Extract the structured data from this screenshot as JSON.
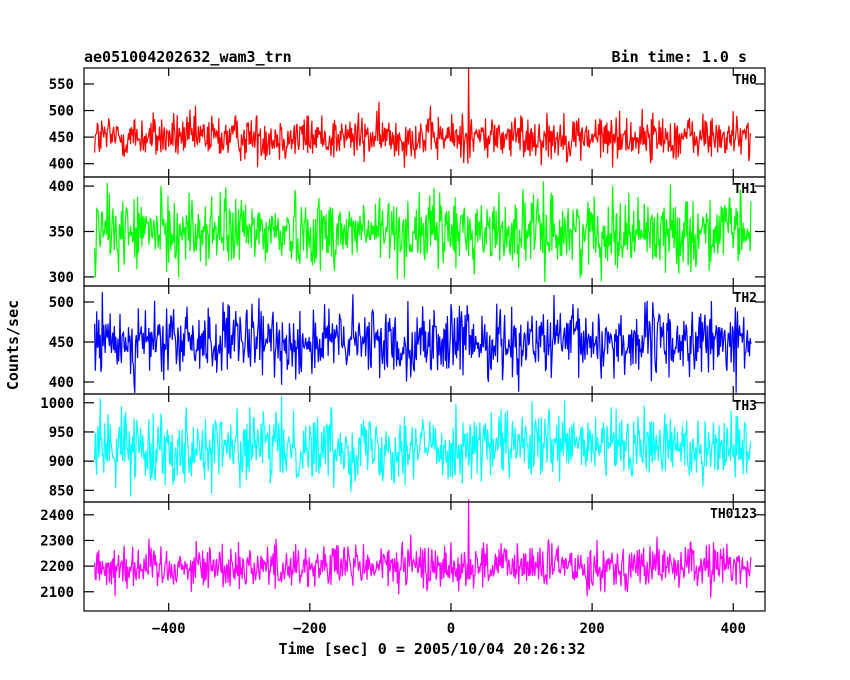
{
  "header": {
    "title": "ae051004202632_wam3_trn",
    "bin_time": "Bin time: 1.0 s"
  },
  "chart_data": {
    "type": "line",
    "xlabel": "Time [sec] 0 = 2005/10/04 20:26:32",
    "ylabel": "Counts/sec",
    "xlim": [
      -520,
      445
    ],
    "x_ticks": [
      -400,
      -200,
      0,
      200,
      400
    ],
    "x_tick_labels": [
      "−400",
      "−200",
      "0",
      "200",
      "400"
    ],
    "x_data_range": [
      -505,
      425
    ],
    "bin_time_s": 1.0,
    "shared_x_axis": true,
    "panels": [
      {
        "name": "TH0",
        "color": "#ff0000",
        "ylim": [
          375,
          580
        ],
        "yticks": [
          400,
          450,
          500,
          550
        ],
        "mean": 450,
        "spread": 22,
        "min": 372,
        "max": 580
      },
      {
        "name": "TH1",
        "color": "#00ff00",
        "ylim": [
          290,
          410
        ],
        "yticks": [
          300,
          350,
          400
        ],
        "mean": 350,
        "spread": 20,
        "min": 290,
        "max": 410
      },
      {
        "name": "TH2",
        "color": "#0000ff",
        "ylim": [
          385,
          520
        ],
        "yticks": [
          400,
          450,
          500
        ],
        "mean": 450,
        "spread": 22,
        "min": 385,
        "max": 520
      },
      {
        "name": "TH3",
        "color": "#00ffff",
        "ylim": [
          830,
          1015
        ],
        "yticks": [
          850,
          900,
          950,
          1000
        ],
        "mean": 925,
        "spread": 30,
        "min": 830,
        "max": 1015
      },
      {
        "name": "TH0123",
        "color": "#ff00ff",
        "ylim": [
          2025,
          2450
        ],
        "yticks": [
          2100,
          2200,
          2300,
          2400
        ],
        "mean": 2200,
        "spread": 45,
        "min": 2030,
        "max": 2460
      }
    ],
    "spikes": [
      {
        "panel": "TH0",
        "x": 25,
        "y": 580
      },
      {
        "panel": "TH0123",
        "x": 25,
        "y": 2460
      }
    ]
  }
}
